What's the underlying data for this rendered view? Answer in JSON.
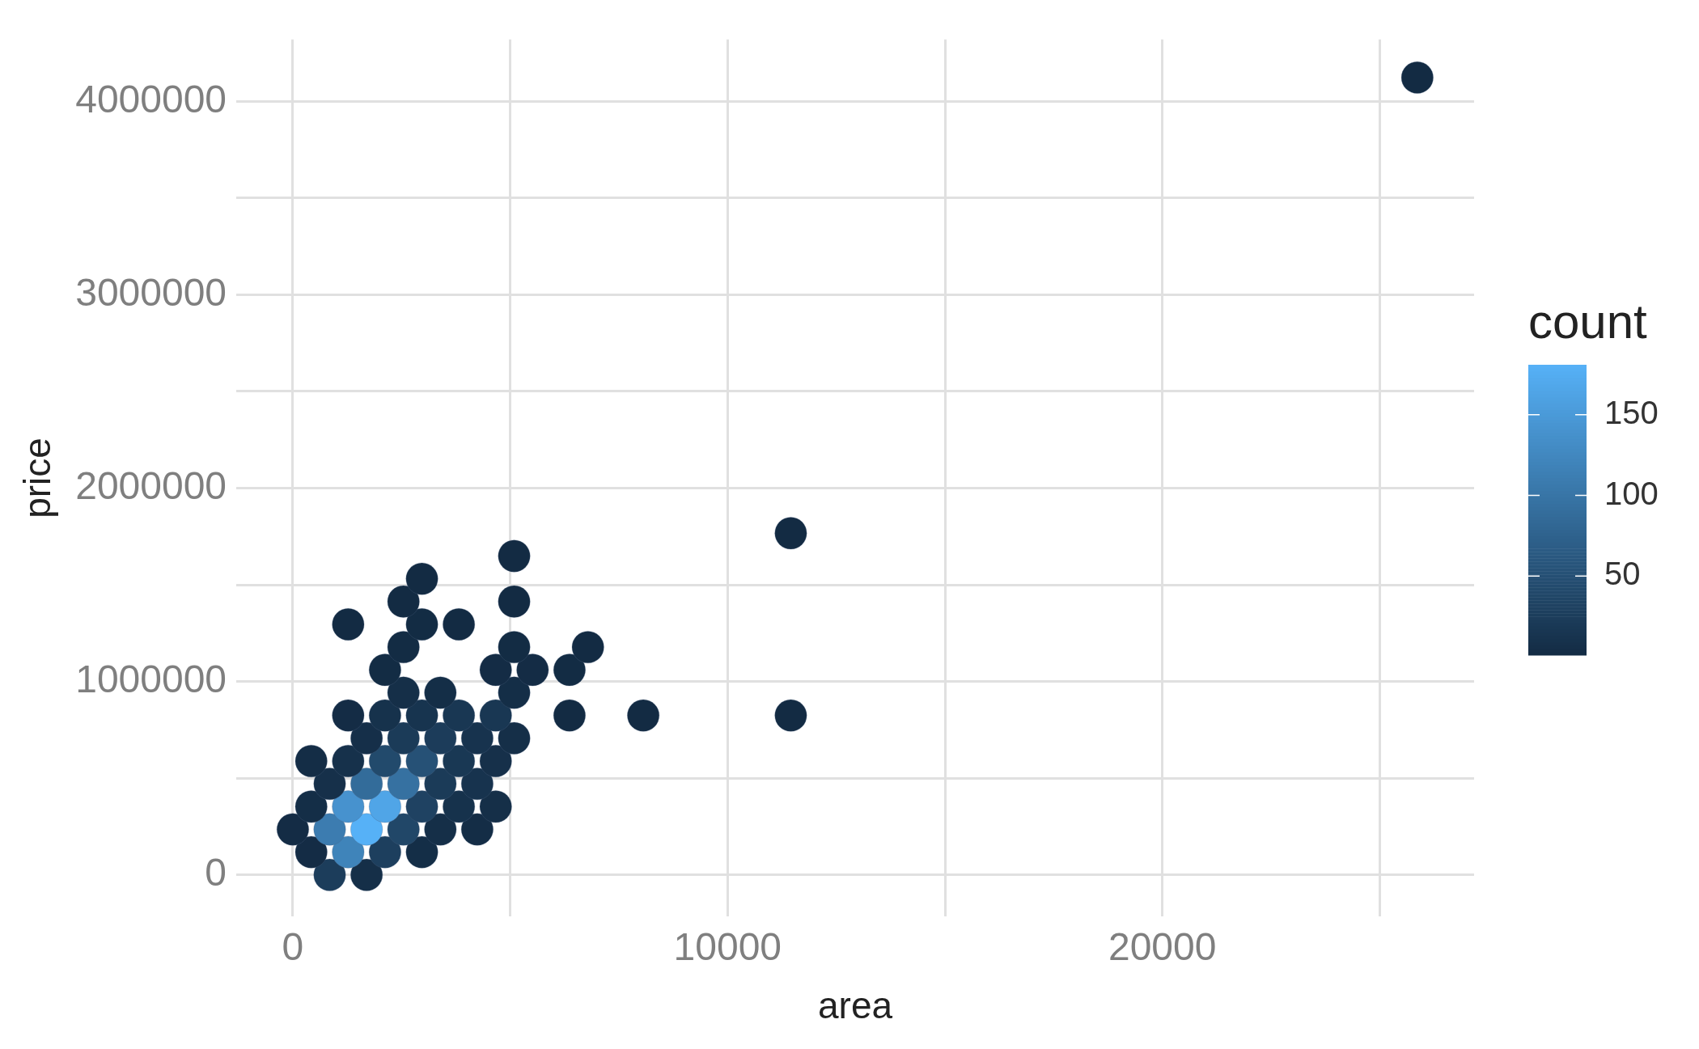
{
  "chart_data": {
    "type": "scatter",
    "xlabel": "area",
    "ylabel": "price",
    "clabel": "count",
    "x": [
      848,
      1697,
      424,
      1273,
      2121,
      2970,
      0,
      848,
      1697,
      2545,
      3394,
      4242,
      424,
      1273,
      2121,
      2970,
      3818,
      4667,
      848,
      1697,
      2545,
      3394,
      4242,
      424,
      1273,
      2121,
      2970,
      3818,
      4667,
      1697,
      2545,
      3394,
      4242,
      5091,
      1273,
      2121,
      2970,
      3818,
      4667,
      6364,
      8061,
      11454,
      2545,
      3394,
      5091,
      2121,
      4667,
      5515,
      6364,
      2545,
      5091,
      6788,
      1273,
      2970,
      3818,
      2545,
      5091,
      2970,
      5091,
      11454,
      25864
    ],
    "values": [
      0,
      0,
      117800,
      117800,
      117800,
      117800,
      235600,
      235600,
      235600,
      235600,
      235600,
      235600,
      353400,
      353400,
      353400,
      353400,
      353400,
      353400,
      471200,
      471200,
      471200,
      471200,
      471200,
      589000,
      589000,
      589000,
      589000,
      589000,
      589000,
      706800,
      706800,
      706800,
      706800,
      706800,
      824600,
      824600,
      824600,
      824600,
      824600,
      824600,
      824600,
      824600,
      942400,
      942400,
      942400,
      1060200,
      1060200,
      1060200,
      1060200,
      1178000,
      1178000,
      1178000,
      1295800,
      1295800,
      1295800,
      1413600,
      1413600,
      1531400,
      1649200,
      1767000,
      4123000
    ],
    "cvalues": [
      25,
      6,
      3,
      120,
      28,
      5,
      3,
      110,
      181,
      38,
      6,
      4,
      5,
      140,
      165,
      32,
      10,
      6,
      8,
      88,
      95,
      22,
      12,
      4,
      9,
      42,
      52,
      18,
      8,
      7,
      22,
      24,
      12,
      6,
      3,
      10,
      13,
      17,
      17,
      1,
      1,
      1,
      6,
      5,
      5,
      2,
      3,
      3,
      2,
      2,
      2,
      1,
      1,
      2,
      1,
      1,
      1,
      1,
      1,
      1,
      1
    ],
    "clim": [
      1,
      181
    ],
    "cticks": [
      50,
      100,
      150
    ],
    "xlim": [
      -1300,
      27170
    ],
    "xticks": [
      0,
      {
        "value": 5000,
        "label": null
      },
      10000,
      {
        "value": 15000,
        "label": null
      },
      20000,
      {
        "value": 25000,
        "label": null
      }
    ],
    "ylim": [
      -215000,
      4320000
    ],
    "yticks": [
      0,
      {
        "value": 500000,
        "label": null
      },
      1000000,
      {
        "value": 1500000,
        "label": null
      },
      2000000,
      {
        "value": 2500000,
        "label": null
      },
      3000000,
      {
        "value": 3500000,
        "label": null
      },
      4000000
    ],
    "grid": true
  }
}
